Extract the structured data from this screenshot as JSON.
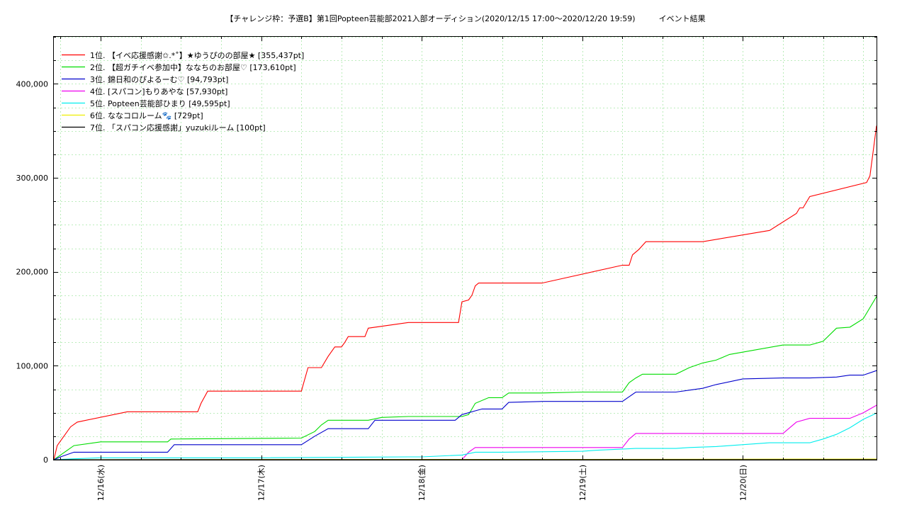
{
  "chart_data": {
    "type": "line",
    "title": "【チャレンジ枠：予選B】第1回Popteen芸能部2021入部オーディション(2020/12/15 17:00〜2020/12/20 19:59)　　　イベント結果",
    "ylim": [
      0,
      450000
    ],
    "yticks": [
      0,
      100000,
      200000,
      300000,
      400000
    ],
    "ytick_labels": [
      "0",
      "100,000",
      "200,000",
      "300,000",
      "400,000"
    ],
    "xlim": [
      "2020-12-15 17:00",
      "2020-12-20 19:59"
    ],
    "xticks": [
      "2020-12-16 00:00",
      "2020-12-17 00:00",
      "2020-12-18 00:00",
      "2020-12-19 00:00",
      "2020-12-20 00:00"
    ],
    "xtick_labels": [
      "12/16(水)",
      "12/17(木)",
      "12/18(金)",
      "12/19(土)",
      "12/20(日)"
    ],
    "grid": true,
    "legend": "top-left",
    "series": [
      {
        "name": "1位. 【イベ応援感謝✩.*˚】★ゆうぴのの部屋★ [355,437pt]",
        "color": "#ff0000",
        "x": [
          "2020-12-15 17:00",
          "2020-12-15 17:30",
          "2020-12-15 18:30",
          "2020-12-15 19:30",
          "2020-12-15 20:30",
          "2020-12-16 04:00",
          "2020-12-16 04:10",
          "2020-12-16 14:30",
          "2020-12-16 15:00",
          "2020-12-16 16:00",
          "2020-12-16 17:00",
          "2020-12-16 18:00",
          "2020-12-17 06:00",
          "2020-12-17 07:00",
          "2020-12-17 09:00",
          "2020-12-17 10:00",
          "2020-12-17 11:00",
          "2020-12-17 12:00",
          "2020-12-17 12:30",
          "2020-12-17 13:00",
          "2020-12-17 14:00",
          "2020-12-17 15:30",
          "2020-12-17 16:00",
          "2020-12-17 22:00",
          "2020-12-18 05:30",
          "2020-12-18 06:00",
          "2020-12-18 07:00",
          "2020-12-18 07:30",
          "2020-12-18 08:00",
          "2020-12-18 08:30",
          "2020-12-18 09:00",
          "2020-12-18 18:00",
          "2020-12-19 06:00",
          "2020-12-19 07:00",
          "2020-12-19 07:30",
          "2020-12-19 08:30",
          "2020-12-19 09:00",
          "2020-12-19 09:30",
          "2020-12-19 10:00",
          "2020-12-19 18:00",
          "2020-12-20 04:00",
          "2020-12-20 08:00",
          "2020-12-20 08:30",
          "2020-12-20 09:00",
          "2020-12-20 10:00",
          "2020-12-20 18:30",
          "2020-12-20 19:00",
          "2020-12-20 19:59"
        ],
        "y": [
          0,
          15000,
          25000,
          35000,
          40000,
          51000,
          51000,
          51000,
          60000,
          73000,
          73000,
          73000,
          73000,
          98000,
          98000,
          110000,
          120000,
          120000,
          125000,
          131000,
          131000,
          131000,
          140000,
          146000,
          146000,
          168000,
          170000,
          175000,
          185000,
          188000,
          188000,
          188000,
          207000,
          207000,
          218000,
          224000,
          228000,
          232000,
          232000,
          232000,
          244000,
          262000,
          268000,
          268000,
          280000,
          295000,
          302000,
          355437
        ]
      },
      {
        "name": "2位. 【超ガチイベ参加中】ななちのお部屋♡ [173,610pt]",
        "color": "#00dd00",
        "x": [
          "2020-12-15 17:00",
          "2020-12-15 18:00",
          "2020-12-15 20:00",
          "2020-12-16 00:00",
          "2020-12-16 10:00",
          "2020-12-16 10:30",
          "2020-12-17 06:00",
          "2020-12-17 08:00",
          "2020-12-17 09:00",
          "2020-12-17 10:00",
          "2020-12-17 16:00",
          "2020-12-17 18:00",
          "2020-12-17 22:00",
          "2020-12-18 06:00",
          "2020-12-18 07:00",
          "2020-12-18 08:00",
          "2020-12-18 10:00",
          "2020-12-18 12:00",
          "2020-12-18 13:00",
          "2020-12-18 18:00",
          "2020-12-19 00:00",
          "2020-12-19 06:00",
          "2020-12-19 07:00",
          "2020-12-19 08:00",
          "2020-12-19 09:00",
          "2020-12-19 10:00",
          "2020-12-19 14:00",
          "2020-12-19 16:00",
          "2020-12-19 18:00",
          "2020-12-19 20:00",
          "2020-12-19 22:00",
          "2020-12-20 06:00",
          "2020-12-20 08:00",
          "2020-12-20 10:00",
          "2020-12-20 12:00",
          "2020-12-20 14:00",
          "2020-12-20 16:00",
          "2020-12-20 18:00",
          "2020-12-20 19:59"
        ],
        "y": [
          0,
          5000,
          15000,
          19000,
          19000,
          22000,
          23000,
          30000,
          37000,
          42000,
          42000,
          45000,
          46000,
          46000,
          48000,
          60000,
          66000,
          66000,
          71000,
          71000,
          72000,
          72000,
          82000,
          87000,
          91000,
          91000,
          91000,
          98000,
          103000,
          106000,
          112000,
          122000,
          122000,
          122000,
          126000,
          140000,
          141000,
          150000,
          173610
        ]
      },
      {
        "name": "3位. 錦日和のぴよるーむ♡ [94,793pt]",
        "color": "#0000cc",
        "x": [
          "2020-12-15 17:00",
          "2020-12-15 18:00",
          "2020-12-15 20:00",
          "2020-12-16 00:00",
          "2020-12-16 10:00",
          "2020-12-16 11:00",
          "2020-12-17 06:00",
          "2020-12-17 08:00",
          "2020-12-17 10:00",
          "2020-12-17 16:00",
          "2020-12-17 17:00",
          "2020-12-18 05:00",
          "2020-12-18 06:00",
          "2020-12-18 07:00",
          "2020-12-18 08:00",
          "2020-12-18 09:00",
          "2020-12-18 10:00",
          "2020-12-18 12:00",
          "2020-12-18 13:00",
          "2020-12-18 18:00",
          "2020-12-19 00:00",
          "2020-12-19 06:00",
          "2020-12-19 07:00",
          "2020-12-19 08:00",
          "2020-12-19 10:00",
          "2020-12-19 12:00",
          "2020-12-19 14:00",
          "2020-12-19 16:00",
          "2020-12-19 18:00",
          "2020-12-19 20:00",
          "2020-12-20 00:00",
          "2020-12-20 06:00",
          "2020-12-20 08:00",
          "2020-12-20 10:00",
          "2020-12-20 14:00",
          "2020-12-20 16:00",
          "2020-12-20 18:00",
          "2020-12-20 19:59"
        ],
        "y": [
          0,
          3000,
          8000,
          8000,
          8000,
          16000,
          16000,
          25000,
          33000,
          33000,
          42000,
          42000,
          48000,
          50000,
          52000,
          54000,
          54000,
          54000,
          61000,
          62000,
          62000,
          62000,
          67000,
          72000,
          72000,
          72000,
          72000,
          74000,
          76000,
          80000,
          86000,
          87000,
          87000,
          87000,
          88000,
          90000,
          90000,
          94793
        ]
      },
      {
        "name": "4位. [スパコン]もりあやな [57,930pt]",
        "color": "#ee00ee",
        "x": [
          "2020-12-15 17:00",
          "2020-12-18 06:00",
          "2020-12-18 07:00",
          "2020-12-18 08:00",
          "2020-12-18 12:00",
          "2020-12-18 18:00",
          "2020-12-19 06:00",
          "2020-12-19 07:00",
          "2020-12-19 08:00",
          "2020-12-19 10:00",
          "2020-12-19 20:00",
          "2020-12-20 06:00",
          "2020-12-20 08:00",
          "2020-12-20 10:00",
          "2020-12-20 14:00",
          "2020-12-20 16:00",
          "2020-12-20 18:00",
          "2020-12-20 19:59"
        ],
        "y": [
          0,
          0,
          8000,
          13000,
          13000,
          13000,
          13000,
          22000,
          28000,
          28000,
          28000,
          28000,
          40000,
          44000,
          44000,
          44000,
          50000,
          57930
        ]
      },
      {
        "name": "5位. Popteen芸能部ひまり [49,595pt]",
        "color": "#00eeee",
        "x": [
          "2020-12-15 17:00",
          "2020-12-15 20:00",
          "2020-12-16 00:00",
          "2020-12-17 00:00",
          "2020-12-17 22:00",
          "2020-12-18 00:00",
          "2020-12-18 06:00",
          "2020-12-18 08:00",
          "2020-12-18 12:00",
          "2020-12-19 00:00",
          "2020-12-19 02:00",
          "2020-12-19 08:00",
          "2020-12-19 14:00",
          "2020-12-19 16:00",
          "2020-12-19 20:00",
          "2020-12-20 04:00",
          "2020-12-20 10:00",
          "2020-12-20 12:00",
          "2020-12-20 14:00",
          "2020-12-20 16:00",
          "2020-12-20 18:00",
          "2020-12-20 19:59"
        ],
        "y": [
          0,
          1000,
          2000,
          2000,
          3000,
          3000,
          5000,
          8000,
          8000,
          9000,
          10000,
          12000,
          12000,
          13000,
          14000,
          18000,
          18000,
          22000,
          27000,
          34000,
          43000,
          49595
        ]
      },
      {
        "name": "6位. ななコロルーム🐾 [729pt]",
        "color": "#eeee00",
        "x": [
          "2020-12-15 17:00",
          "2020-12-17 00:00",
          "2020-12-19 00:00",
          "2020-12-20 19:59"
        ],
        "y": [
          0,
          200,
          400,
          729
        ]
      },
      {
        "name": "7位. 「スパコン応援感謝」yuzukiルーム [100pt]",
        "color": "#000000",
        "x": [
          "2020-12-15 17:00",
          "2020-12-20 19:59"
        ],
        "y": [
          0,
          100
        ]
      }
    ]
  }
}
